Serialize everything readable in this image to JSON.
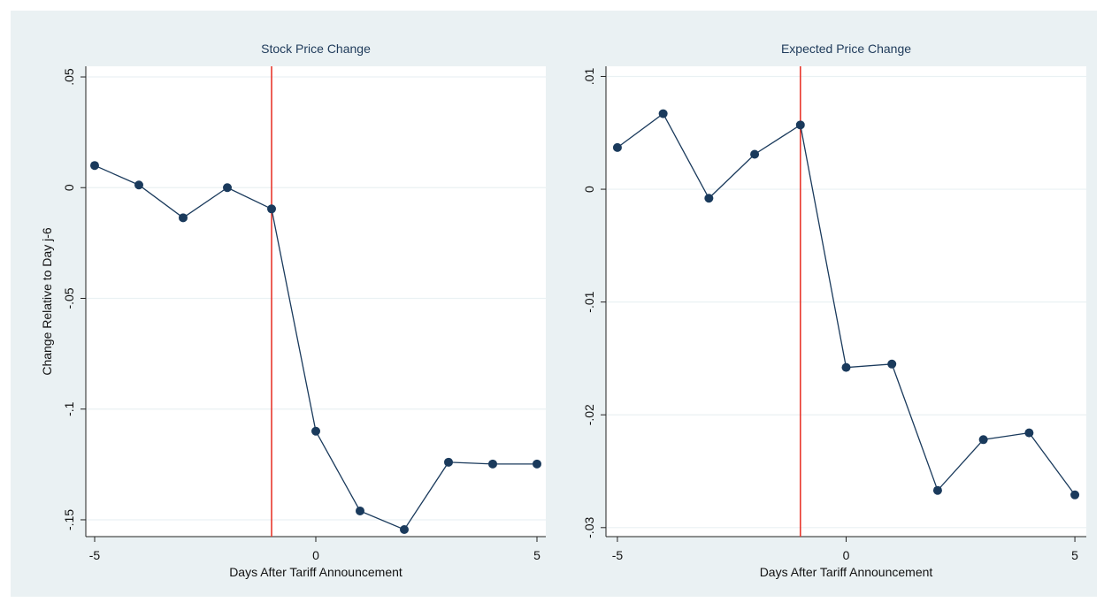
{
  "chart_data": [
    {
      "type": "line",
      "title": "Stock Price Change",
      "x_label": "Days After Tariff Announcement",
      "y_label": "Change Relative to Day j-6",
      "x": [
        -5,
        -4,
        -3,
        -2,
        -1,
        0,
        1,
        2,
        3,
        4,
        5
      ],
      "values": [
        0.01,
        0.0012,
        -0.0136,
        0,
        -0.0096,
        -0.11,
        -0.146,
        -0.1544,
        -0.124,
        -0.1248,
        -0.1248
      ],
      "color": "#1a3a5c",
      "xline": -1,
      "xline_color": "#e8382d",
      "xlim": [
        -5.2,
        5.2
      ],
      "xticks": [
        -5,
        0,
        5
      ],
      "ylim": [
        -0.1576,
        0.0548
      ],
      "yticks": [
        {
          "value": -0.15,
          "label": "-.15"
        },
        {
          "value": -0.1,
          "label": "-.1"
        },
        {
          "value": -0.05,
          "label": "-.05"
        },
        0,
        {
          "value": 0.05,
          "label": ".05"
        }
      ],
      "grid": true
    },
    {
      "type": "line",
      "title": "Expected Price Change",
      "x_label": "Days After Tariff Announcement",
      "x": [
        -5,
        -4,
        -3,
        -2,
        -1,
        0,
        1,
        2,
        3,
        4,
        5
      ],
      "values": [
        0.0037,
        0.0067,
        -0.0008,
        0.0031,
        0.0057,
        -0.0158,
        -0.0155,
        -0.0267,
        -0.0222,
        -0.0216,
        -0.0271
      ],
      "color": "#1a3a5c",
      "xline": -1,
      "xline_color": "#e8382d",
      "xlim": [
        -5.25,
        5.25
      ],
      "xticks": [
        -5,
        0,
        5
      ],
      "ylim": [
        -0.0308,
        0.0109
      ],
      "yticks": [
        {
          "value": -0.03,
          "label": "-.03"
        },
        {
          "value": -0.02,
          "label": "-.02"
        },
        {
          "value": -0.01,
          "label": "-.01"
        },
        0,
        {
          "value": 0.01,
          "label": ".01"
        }
      ],
      "grid": true
    }
  ]
}
